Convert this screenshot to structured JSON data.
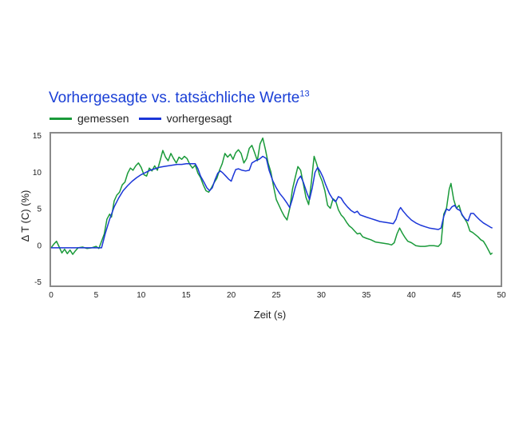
{
  "chart_data": {
    "type": "line",
    "title": "Vorhergesagte vs. tatsächliche Werte",
    "title_superscript": "13",
    "xlabel": "Zeit (s)",
    "ylabel": "Δ T (C) (%)",
    "xlim": [
      0,
      50
    ],
    "ylim": [
      -5,
      15
    ],
    "xticks": [
      0,
      5,
      10,
      15,
      20,
      25,
      30,
      35,
      40,
      45,
      50
    ],
    "yticks": [
      15,
      10,
      5,
      0,
      -5
    ],
    "grid": false,
    "legend_position": "top-left",
    "series": [
      {
        "name": "gemessen",
        "color": "#1a9a3a",
        "points": [
          [
            0,
            -0.4
          ],
          [
            0.3,
            0.1
          ],
          [
            0.6,
            0.5
          ],
          [
            0.9,
            -0.3
          ],
          [
            1.2,
            -1.1
          ],
          [
            1.5,
            -0.6
          ],
          [
            1.8,
            -1.2
          ],
          [
            2.1,
            -0.7
          ],
          [
            2.4,
            -1.3
          ],
          [
            2.7,
            -0.8
          ],
          [
            3.0,
            -0.4
          ],
          [
            3.5,
            -0.3
          ],
          [
            4.0,
            -0.5
          ],
          [
            4.5,
            -0.4
          ],
          [
            5.0,
            -0.2
          ],
          [
            5.3,
            -0.5
          ],
          [
            5.6,
            0.5
          ],
          [
            5.9,
            1.5
          ],
          [
            6.2,
            3.5
          ],
          [
            6.5,
            4.2
          ],
          [
            6.7,
            3.8
          ],
          [
            7.0,
            6.0
          ],
          [
            7.3,
            6.8
          ],
          [
            7.6,
            7.2
          ],
          [
            7.9,
            8.2
          ],
          [
            8.2,
            8.6
          ],
          [
            8.5,
            9.8
          ],
          [
            8.8,
            10.5
          ],
          [
            9.1,
            10.2
          ],
          [
            9.4,
            10.8
          ],
          [
            9.7,
            11.2
          ],
          [
            10.0,
            10.6
          ],
          [
            10.3,
            9.6
          ],
          [
            10.6,
            9.4
          ],
          [
            10.9,
            10.5
          ],
          [
            11.2,
            10.1
          ],
          [
            11.5,
            10.8
          ],
          [
            11.8,
            10.2
          ],
          [
            12.1,
            11.5
          ],
          [
            12.4,
            12.9
          ],
          [
            12.7,
            12.0
          ],
          [
            13.0,
            11.5
          ],
          [
            13.3,
            12.5
          ],
          [
            13.6,
            11.8
          ],
          [
            13.9,
            11.2
          ],
          [
            14.2,
            12.0
          ],
          [
            14.5,
            11.7
          ],
          [
            14.8,
            12.1
          ],
          [
            15.1,
            11.8
          ],
          [
            15.4,
            11.0
          ],
          [
            15.7,
            10.5
          ],
          [
            16.0,
            10.9
          ],
          [
            16.3,
            9.8
          ],
          [
            16.6,
            9.2
          ],
          [
            16.9,
            8.2
          ],
          [
            17.2,
            7.4
          ],
          [
            17.5,
            7.2
          ],
          [
            17.8,
            7.8
          ],
          [
            18.1,
            8.5
          ],
          [
            18.4,
            9.1
          ],
          [
            18.7,
            10.2
          ],
          [
            19.0,
            11.1
          ],
          [
            19.3,
            12.5
          ],
          [
            19.6,
            12.0
          ],
          [
            19.9,
            12.4
          ],
          [
            20.2,
            11.7
          ],
          [
            20.5,
            12.6
          ],
          [
            20.8,
            13.0
          ],
          [
            21.1,
            12.5
          ],
          [
            21.4,
            11.2
          ],
          [
            21.7,
            11.8
          ],
          [
            22.0,
            13.2
          ],
          [
            22.3,
            13.6
          ],
          [
            22.6,
            12.6
          ],
          [
            22.9,
            11.5
          ],
          [
            23.2,
            13.8
          ],
          [
            23.5,
            14.6
          ],
          [
            23.8,
            13.0
          ],
          [
            24.1,
            11.2
          ],
          [
            24.4,
            10.0
          ],
          [
            24.7,
            8.0
          ],
          [
            25.0,
            6.2
          ],
          [
            25.3,
            5.4
          ],
          [
            25.6,
            4.6
          ],
          [
            25.9,
            3.9
          ],
          [
            26.2,
            3.4
          ],
          [
            26.5,
            5.0
          ],
          [
            26.8,
            7.6
          ],
          [
            27.1,
            9.2
          ],
          [
            27.4,
            10.7
          ],
          [
            27.7,
            10.2
          ],
          [
            28.0,
            8.4
          ],
          [
            28.3,
            6.5
          ],
          [
            28.6,
            5.5
          ],
          [
            28.9,
            8.6
          ],
          [
            29.2,
            12.1
          ],
          [
            29.5,
            11.0
          ],
          [
            29.8,
            9.6
          ],
          [
            30.1,
            8.7
          ],
          [
            30.4,
            7.4
          ],
          [
            30.7,
            5.4
          ],
          [
            31.0,
            5.0
          ],
          [
            31.3,
            6.3
          ],
          [
            31.6,
            6.0
          ],
          [
            31.9,
            4.8
          ],
          [
            32.2,
            4.1
          ],
          [
            32.5,
            3.7
          ],
          [
            32.8,
            3.1
          ],
          [
            33.1,
            2.6
          ],
          [
            33.4,
            2.3
          ],
          [
            33.7,
            1.9
          ],
          [
            34.0,
            1.5
          ],
          [
            34.3,
            1.6
          ],
          [
            34.6,
            1.1
          ],
          [
            35.0,
            0.9
          ],
          [
            35.5,
            0.7
          ],
          [
            36.0,
            0.4
          ],
          [
            36.5,
            0.3
          ],
          [
            37.0,
            0.2
          ],
          [
            37.5,
            0.1
          ],
          [
            37.8,
            0.0
          ],
          [
            38.1,
            0.3
          ],
          [
            38.4,
            1.5
          ],
          [
            38.7,
            2.3
          ],
          [
            39.0,
            1.6
          ],
          [
            39.3,
            1.0
          ],
          [
            39.6,
            0.5
          ],
          [
            40.0,
            0.3
          ],
          [
            40.5,
            -0.1
          ],
          [
            41.0,
            -0.2
          ],
          [
            41.5,
            -0.2
          ],
          [
            42.0,
            -0.1
          ],
          [
            42.5,
            -0.1
          ],
          [
            43.0,
            -0.2
          ],
          [
            43.3,
            0.2
          ],
          [
            43.6,
            4.2
          ],
          [
            43.9,
            5.0
          ],
          [
            44.2,
            7.6
          ],
          [
            44.4,
            8.4
          ],
          [
            44.7,
            6.2
          ],
          [
            45.0,
            5.0
          ],
          [
            45.3,
            5.4
          ],
          [
            45.6,
            4.1
          ],
          [
            45.9,
            3.6
          ],
          [
            46.2,
            3.0
          ],
          [
            46.5,
            1.9
          ],
          [
            46.8,
            1.7
          ],
          [
            47.1,
            1.4
          ],
          [
            47.4,
            1.1
          ],
          [
            47.7,
            0.7
          ],
          [
            48.0,
            0.5
          ],
          [
            48.3,
            -0.1
          ],
          [
            48.6,
            -0.8
          ],
          [
            48.8,
            -1.3
          ],
          [
            49.0,
            -1.1
          ]
        ]
      },
      {
        "name": "vorhergesagt",
        "color": "#1b36d8",
        "points": [
          [
            0,
            -0.4
          ],
          [
            5.6,
            -0.4
          ],
          [
            6.0,
            1.5
          ],
          [
            6.5,
            3.5
          ],
          [
            7.0,
            5.2
          ],
          [
            7.5,
            6.4
          ],
          [
            8.0,
            7.4
          ],
          [
            8.5,
            8.1
          ],
          [
            9.0,
            8.7
          ],
          [
            9.5,
            9.2
          ],
          [
            10.0,
            9.6
          ],
          [
            10.5,
            9.9
          ],
          [
            11.0,
            10.2
          ],
          [
            11.5,
            10.4
          ],
          [
            12.0,
            10.6
          ],
          [
            12.5,
            10.7
          ],
          [
            13.0,
            10.8
          ],
          [
            13.5,
            10.9
          ],
          [
            14.0,
            11.0
          ],
          [
            14.5,
            11.0
          ],
          [
            15.0,
            11.1
          ],
          [
            15.5,
            11.1
          ],
          [
            16.0,
            11.1
          ],
          [
            16.3,
            10.4
          ],
          [
            16.6,
            9.4
          ],
          [
            17.0,
            8.5
          ],
          [
            17.3,
            7.8
          ],
          [
            17.6,
            7.4
          ],
          [
            17.9,
            7.8
          ],
          [
            18.2,
            8.9
          ],
          [
            18.5,
            9.8
          ],
          [
            18.8,
            10.1
          ],
          [
            19.1,
            9.8
          ],
          [
            19.4,
            9.4
          ],
          [
            19.7,
            9.0
          ],
          [
            20.0,
            8.7
          ],
          [
            20.2,
            9.4
          ],
          [
            20.5,
            10.3
          ],
          [
            20.8,
            10.4
          ],
          [
            21.2,
            10.2
          ],
          [
            21.6,
            10.1
          ],
          [
            22.0,
            10.2
          ],
          [
            22.3,
            11.2
          ],
          [
            22.7,
            11.5
          ],
          [
            23.1,
            11.7
          ],
          [
            23.5,
            12.1
          ],
          [
            23.9,
            11.8
          ],
          [
            24.2,
            10.2
          ],
          [
            24.6,
            8.8
          ],
          [
            25.0,
            7.8
          ],
          [
            25.4,
            7.0
          ],
          [
            25.8,
            6.4
          ],
          [
            26.2,
            5.7
          ],
          [
            26.5,
            5.1
          ],
          [
            26.8,
            6.3
          ],
          [
            27.1,
            7.8
          ],
          [
            27.4,
            8.9
          ],
          [
            27.7,
            9.4
          ],
          [
            28.0,
            8.6
          ],
          [
            28.4,
            7.1
          ],
          [
            28.7,
            6.2
          ],
          [
            29.0,
            7.8
          ],
          [
            29.3,
            9.9
          ],
          [
            29.6,
            10.6
          ],
          [
            29.9,
            10.0
          ],
          [
            30.2,
            9.2
          ],
          [
            30.5,
            8.2
          ],
          [
            30.9,
            7.0
          ],
          [
            31.3,
            6.2
          ],
          [
            31.6,
            5.9
          ],
          [
            31.9,
            6.6
          ],
          [
            32.2,
            6.4
          ],
          [
            32.5,
            5.8
          ],
          [
            32.9,
            5.2
          ],
          [
            33.3,
            4.7
          ],
          [
            33.7,
            4.4
          ],
          [
            34.0,
            4.6
          ],
          [
            34.3,
            4.1
          ],
          [
            35.0,
            3.8
          ],
          [
            35.5,
            3.6
          ],
          [
            36.0,
            3.4
          ],
          [
            36.5,
            3.2
          ],
          [
            37.0,
            3.1
          ],
          [
            37.5,
            3.0
          ],
          [
            38.0,
            2.9
          ],
          [
            38.3,
            3.5
          ],
          [
            38.6,
            4.7
          ],
          [
            38.8,
            5.1
          ],
          [
            39.1,
            4.6
          ],
          [
            39.5,
            4.0
          ],
          [
            40.0,
            3.4
          ],
          [
            40.5,
            3.0
          ],
          [
            41.0,
            2.7
          ],
          [
            41.5,
            2.5
          ],
          [
            42.0,
            2.3
          ],
          [
            42.5,
            2.2
          ],
          [
            43.0,
            2.1
          ],
          [
            43.3,
            2.3
          ],
          [
            43.6,
            3.9
          ],
          [
            43.9,
            4.9
          ],
          [
            44.2,
            4.7
          ],
          [
            44.5,
            5.2
          ],
          [
            44.8,
            5.4
          ],
          [
            45.1,
            4.9
          ],
          [
            45.4,
            4.7
          ],
          [
            45.7,
            4.0
          ],
          [
            46.0,
            3.5
          ],
          [
            46.3,
            3.3
          ],
          [
            46.6,
            4.3
          ],
          [
            46.9,
            4.3
          ],
          [
            47.2,
            3.9
          ],
          [
            47.6,
            3.4
          ],
          [
            48.0,
            3.0
          ],
          [
            48.4,
            2.7
          ],
          [
            48.8,
            2.4
          ],
          [
            49.0,
            2.3
          ]
        ]
      }
    ]
  }
}
